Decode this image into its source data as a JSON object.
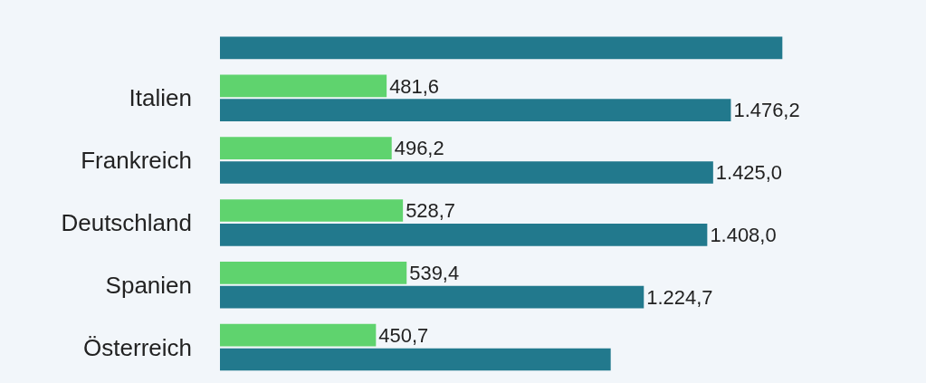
{
  "chart_data": {
    "type": "bar",
    "orientation": "horizontal",
    "categories": [
      null,
      "Italien",
      "Frankreich",
      "Deutschland",
      "Spanien",
      "Österreich"
    ],
    "series": [
      {
        "color": "#5fd36e",
        "values": [
          null,
          481.6,
          496.2,
          528.7,
          539.4,
          450.7
        ],
        "value_labels": [
          null,
          "481,6",
          "496,2",
          "528,7",
          "539,4",
          "450,7"
        ]
      },
      {
        "color": "#22798d",
        "values": [
          1625,
          1476.2,
          1425.0,
          1408.0,
          1224.7,
          1129
        ],
        "value_labels": [
          null,
          "1.476,2",
          "1.425,0",
          "1.408,0",
          "1.224,7",
          null
        ]
      }
    ],
    "xlim": [
      0,
      2040
    ]
  }
}
